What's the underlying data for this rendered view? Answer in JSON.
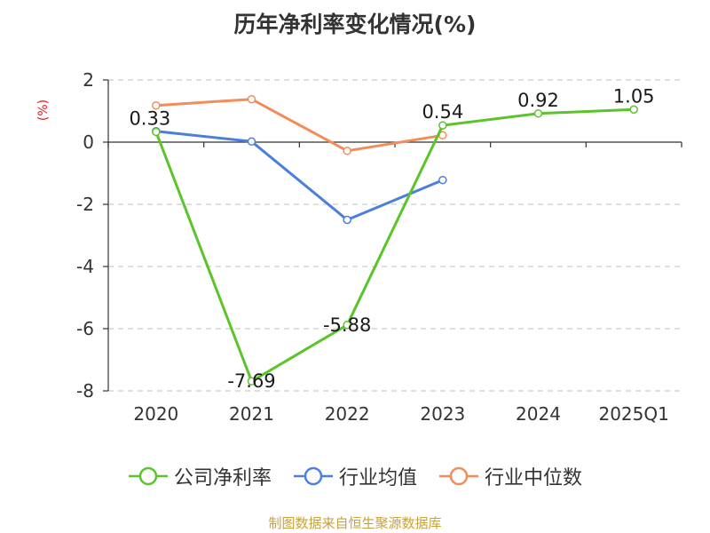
{
  "title": "历年净利率变化情况(%)",
  "unit_label": "(%)",
  "source_note": "制图数据来自恒生聚源数据库",
  "chart_data": {
    "type": "line",
    "categories": [
      "2020",
      "2021",
      "2022",
      "2023",
      "2024",
      "2025Q1"
    ],
    "ylim": [
      -8,
      2
    ],
    "yticks": [
      2,
      0,
      -2,
      -4,
      -6,
      -8
    ],
    "grid": "horizontal dashed",
    "legend_position": "bottom",
    "series": [
      {
        "name": "公司净利率",
        "color": "#5bc42b",
        "values": [
          0.33,
          -7.69,
          -5.88,
          0.54,
          0.92,
          1.05
        ],
        "show_labels": true
      },
      {
        "name": "行业均值",
        "color": "#4a7fdc",
        "values": [
          0.35,
          0.02,
          -2.5,
          -1.22,
          null,
          null
        ],
        "show_labels": false
      },
      {
        "name": "行业中位数",
        "color": "#f28c5a",
        "values": [
          1.18,
          1.38,
          -0.28,
          0.22,
          null,
          null
        ],
        "show_labels": false
      }
    ]
  }
}
